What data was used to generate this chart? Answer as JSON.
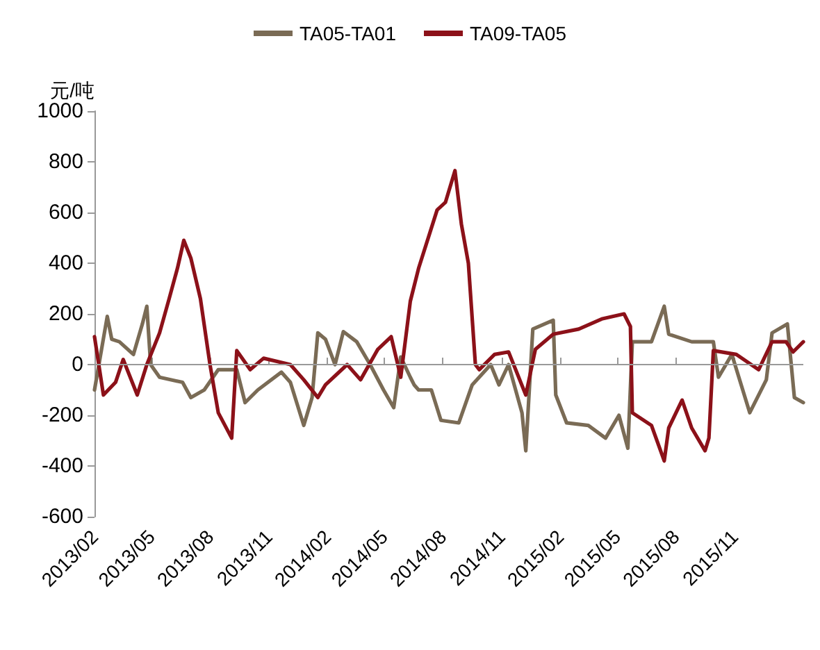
{
  "chart_data": {
    "type": "line",
    "ylabel": "元/吨",
    "xlim": [
      "2013-02-01",
      "2016-02-17"
    ],
    "xticks": [
      {
        "value": "2013-02-01",
        "label": "2013/02"
      },
      {
        "value": "2013-05-01",
        "label": "2013/05"
      },
      {
        "value": "2013-08-01",
        "label": "2013/08"
      },
      {
        "value": "2013-11-01",
        "label": "2013/11"
      },
      {
        "value": "2014-02-01",
        "label": "2014/02"
      },
      {
        "value": "2014-05-01",
        "label": "2014/05"
      },
      {
        "value": "2014-08-01",
        "label": "2014/08"
      },
      {
        "value": "2014-11-01",
        "label": "2014/11"
      },
      {
        "value": "2015-02-01",
        "label": "2015/02"
      },
      {
        "value": "2015-05-01",
        "label": "2015/05"
      },
      {
        "value": "2015-08-01",
        "label": "2015/08"
      },
      {
        "value": "2015-11-01",
        "label": "2015/11"
      }
    ],
    "ylim": [
      -600,
      1000
    ],
    "yticks": [
      -600,
      -400,
      -200,
      0,
      200,
      400,
      600,
      800,
      1000
    ],
    "grid": false,
    "ref_lines": [
      {
        "axis": "y",
        "value": 0,
        "color": "#999999",
        "line_style": "solid"
      }
    ],
    "legend": "top",
    "marker": "none",
    "line_style": "solid",
    "series": [
      {
        "name": "TA05-TA01",
        "color": "#7a6b55",
        "x": [
          "2013-02-01",
          "2013-02-21",
          "2013-02-28",
          "2013-03-12",
          "2013-04-03",
          "2013-04-17",
          "2013-04-24",
          "2013-04-30",
          "2013-05-14",
          "2013-06-19",
          "2013-07-02",
          "2013-07-23",
          "2013-08-14",
          "2013-09-12",
          "2013-09-25",
          "2013-10-15",
          "2013-11-21",
          "2013-12-05",
          "2013-12-26",
          "2014-01-08",
          "2014-01-17",
          "2014-01-29",
          "2014-02-13",
          "2014-02-26",
          "2014-03-19",
          "2014-04-09",
          "2014-04-30",
          "2014-05-16",
          "2014-05-27",
          "2014-06-11",
          "2014-06-17",
          "2014-06-24",
          "2014-07-14",
          "2014-07-29",
          "2014-08-26",
          "2014-09-16",
          "2014-10-15",
          "2014-10-28",
          "2014-11-12",
          "2014-12-03",
          "2014-12-09",
          "2014-12-20",
          "2015-01-21",
          "2015-01-25",
          "2015-02-11",
          "2015-03-17",
          "2015-04-13",
          "2015-05-04",
          "2015-05-18",
          "2015-05-25",
          "2015-06-24",
          "2015-07-14",
          "2015-07-21",
          "2015-08-26",
          "2015-09-29",
          "2015-10-07",
          "2015-10-28",
          "2015-11-25",
          "2015-12-21",
          "2015-12-30",
          "2016-01-23",
          "2016-02-03",
          "2016-02-17"
        ],
        "values": [
          -100,
          190,
          100,
          90,
          40,
          160,
          230,
          0,
          -50,
          -70,
          -130,
          -100,
          -20,
          -20,
          -150,
          -100,
          -30,
          -70,
          -240,
          -130,
          125,
          100,
          0,
          130,
          90,
          0,
          -100,
          -170,
          30,
          -50,
          -80,
          -100,
          -100,
          -220,
          -230,
          -80,
          0,
          -80,
          0,
          -190,
          -340,
          140,
          175,
          -120,
          -230,
          -240,
          -290,
          -200,
          -330,
          90,
          90,
          230,
          120,
          90,
          90,
          -50,
          40,
          -190,
          -60,
          125,
          160,
          -130,
          -150
        ]
      },
      {
        "name": "TA09-TA05",
        "color": "#8c1119",
        "x": [
          "2013-02-01",
          "2013-02-15",
          "2013-03-06",
          "2013-03-18",
          "2013-04-09",
          "2013-04-24",
          "2013-05-14",
          "2013-05-29",
          "2013-06-11",
          "2013-06-21",
          "2013-07-02",
          "2013-07-17",
          "2013-08-01",
          "2013-08-14",
          "2013-09-04",
          "2013-09-12",
          "2013-10-03",
          "2013-10-24",
          "2013-12-05",
          "2013-12-26",
          "2014-01-17",
          "2014-01-29",
          "2014-03-04",
          "2014-03-25",
          "2014-04-21",
          "2014-05-12",
          "2014-05-27",
          "2014-06-11",
          "2014-06-24",
          "2014-07-23",
          "2014-08-05",
          "2014-08-20",
          "2014-08-30",
          "2014-09-10",
          "2014-09-21",
          "2014-09-27",
          "2014-10-21",
          "2014-11-12",
          "2014-12-09",
          "2014-12-24",
          "2015-01-21",
          "2015-03-02",
          "2015-04-07",
          "2015-05-12",
          "2015-05-22",
          "2015-05-25",
          "2015-06-24",
          "2015-07-14",
          "2015-07-21",
          "2015-08-11",
          "2015-08-26",
          "2015-09-16",
          "2015-09-22",
          "2015-09-29",
          "2015-11-04",
          "2015-12-09",
          "2015-12-30",
          "2016-01-21",
          "2016-02-01",
          "2016-02-17"
        ],
        "values": [
          110,
          -120,
          -70,
          20,
          -120,
          0,
          125,
          260,
          380,
          490,
          420,
          260,
          0,
          -190,
          -290,
          55,
          -20,
          25,
          0,
          -60,
          -130,
          -80,
          0,
          -60,
          60,
          110,
          -50,
          250,
          380,
          610,
          640,
          765,
          555,
          400,
          0,
          -20,
          40,
          50,
          -120,
          60,
          120,
          140,
          180,
          200,
          150,
          -190,
          -240,
          -380,
          -250,
          -140,
          -250,
          -340,
          -290,
          55,
          40,
          -20,
          90,
          90,
          50,
          90
        ]
      }
    ]
  }
}
